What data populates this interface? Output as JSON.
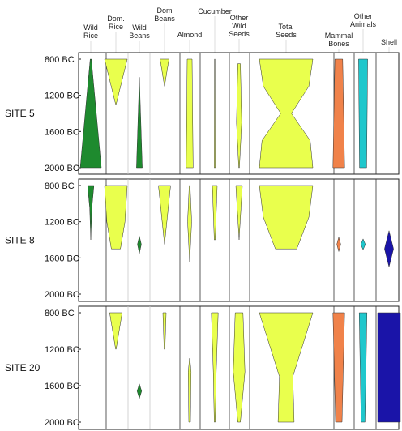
{
  "chart_data": {
    "type": "battleship",
    "ticks": [
      "800 BC",
      "1200 BC",
      "1600 BC",
      "2000 BC"
    ],
    "tick_values": [
      800,
      1200,
      1600,
      2000
    ],
    "ylim": [
      800,
      2000
    ],
    "columns": [
      {
        "name": "Wild Rice",
        "label": [
          "Wild",
          "Rice"
        ],
        "color": "#1e8a2e"
      },
      {
        "name": "Dom. Rice",
        "label": [
          "Dom.",
          "Rice"
        ],
        "color": "#e9ff4d"
      },
      {
        "name": "Wild Beans",
        "label": [
          "Wild",
          "Beans"
        ],
        "color": "#1e8a2e"
      },
      {
        "name": "Dom Beans",
        "label": [
          "Dom",
          "Beans"
        ],
        "color": "#e9ff4d"
      },
      {
        "name": "Almond",
        "label": [
          "Almond"
        ],
        "color": "#e9ff4d"
      },
      {
        "name": "Cucumber",
        "label": [
          "Cucumber"
        ],
        "color": "#e9ff4d"
      },
      {
        "name": "Other Wild Seeds",
        "label": [
          "Other",
          "Wild",
          "Seeds"
        ],
        "color": "#e9ff4d"
      },
      {
        "name": "Total Seeds",
        "label": [
          "Total",
          "Seeds"
        ],
        "color": "#e9ff4d"
      },
      {
        "name": "Mammal Bones",
        "label": [
          "Mammal",
          "Bones"
        ],
        "color": "#f0824a"
      },
      {
        "name": "Other Animals",
        "label": [
          "Other",
          "Animals"
        ],
        "color": "#1fc7cc"
      },
      {
        "name": "Shell",
        "label": [
          "Shell"
        ],
        "color": "#1a14a8"
      }
    ],
    "panels": [
      {
        "site": "SITE 5",
        "ships": [
          {
            "col": 0,
            "profile": [
              [
                800,
                0.05
              ],
              [
                2000,
                1.0
              ]
            ]
          },
          {
            "col": 1,
            "profile": [
              [
                800,
                1.0
              ],
              [
                1300,
                0.02
              ]
            ]
          },
          {
            "col": 2,
            "profile": [
              [
                1000,
                0.0
              ],
              [
                2000,
                0.45
              ]
            ]
          },
          {
            "col": 3,
            "profile": [
              [
                800,
                0.55
              ],
              [
                1100,
                0.0
              ]
            ]
          },
          {
            "col": 4,
            "profile": [
              [
                800,
                0.6
              ],
              [
                2000,
                0.85
              ]
            ]
          },
          {
            "col": 5,
            "profile": [
              [
                800,
                0.05
              ],
              [
                2000,
                0.1
              ]
            ]
          },
          {
            "col": 6,
            "profile": [
              [
                850,
                0.2
              ],
              [
                1500,
                0.4
              ],
              [
                2000,
                0.05
              ]
            ]
          },
          {
            "col": 7,
            "profile": [
              [
                800,
                1.0
              ],
              [
                1100,
                0.85
              ],
              [
                1400,
                0.2
              ],
              [
                1700,
                0.9
              ],
              [
                2000,
                1.0
              ]
            ]
          },
          {
            "col": 8,
            "profile": [
              [
                800,
                0.6
              ],
              [
                2000,
                0.9
              ]
            ]
          },
          {
            "col": 9,
            "profile": [
              [
                800,
                0.7
              ],
              [
                2000,
                0.55
              ]
            ]
          }
        ]
      },
      {
        "site": "SITE 8",
        "ships": [
          {
            "col": 0,
            "profile": [
              [
                800,
                0.3
              ],
              [
                1050,
                0.1
              ],
              [
                1400,
                0.0
              ]
            ]
          },
          {
            "col": 1,
            "profile": [
              [
                800,
                1.0
              ],
              [
                1200,
                0.8
              ],
              [
                1500,
                0.4
              ]
            ]
          },
          {
            "col": 2,
            "profile": [
              [
                1360,
                0.0
              ],
              [
                1450,
                0.3
              ],
              [
                1550,
                0.0
              ]
            ]
          },
          {
            "col": 3,
            "profile": [
              [
                800,
                0.75
              ],
              [
                1450,
                0.0
              ]
            ]
          },
          {
            "col": 4,
            "profile": [
              [
                800,
                0.1
              ],
              [
                1200,
                0.5
              ],
              [
                1650,
                0.0
              ]
            ]
          },
          {
            "col": 5,
            "profile": [
              [
                800,
                0.5
              ],
              [
                1400,
                0.1
              ]
            ]
          },
          {
            "col": 6,
            "profile": [
              [
                800,
                0.5
              ],
              [
                1100,
                0.25
              ],
              [
                1400,
                0.0
              ]
            ]
          },
          {
            "col": 7,
            "profile": [
              [
                800,
                1.0
              ],
              [
                1150,
                0.85
              ],
              [
                1500,
                0.4
              ]
            ]
          },
          {
            "col": 8,
            "profile": [
              [
                1370,
                0.0
              ],
              [
                1450,
                0.3
              ],
              [
                1530,
                0.0
              ]
            ]
          },
          {
            "col": 9,
            "profile": [
              [
                1390,
                0.0
              ],
              [
                1450,
                0.35
              ],
              [
                1510,
                0.0
              ]
            ]
          },
          {
            "col": 10,
            "profile": [
              [
                1300,
                0.0
              ],
              [
                1500,
                0.4
              ],
              [
                1700,
                0.0
              ]
            ]
          }
        ]
      },
      {
        "site": "SITE 20",
        "ships": [
          {
            "col": 1,
            "profile": [
              [
                800,
                0.55
              ],
              [
                1200,
                0.02
              ]
            ]
          },
          {
            "col": 2,
            "profile": [
              [
                1580,
                0.0
              ],
              [
                1660,
                0.35
              ],
              [
                1740,
                0.0
              ]
            ]
          },
          {
            "col": 3,
            "profile": [
              [
                800,
                0.2
              ],
              [
                1200,
                0.05
              ]
            ]
          },
          {
            "col": 4,
            "profile": [
              [
                1300,
                0.05
              ],
              [
                1450,
                0.35
              ],
              [
                2000,
                0.2
              ]
            ]
          },
          {
            "col": 5,
            "profile": [
              [
                800,
                0.7
              ],
              [
                1450,
                0.3
              ],
              [
                2000,
                0.1
              ]
            ]
          },
          {
            "col": 6,
            "profile": [
              [
                800,
                0.6
              ],
              [
                1450,
                0.9
              ],
              [
                2000,
                0.2
              ]
            ]
          },
          {
            "col": 7,
            "profile": [
              [
                800,
                1.0
              ],
              [
                1500,
                0.25
              ],
              [
                2000,
                0.3
              ]
            ]
          },
          {
            "col": 8,
            "profile": [
              [
                800,
                0.9
              ],
              [
                2000,
                0.5
              ]
            ]
          },
          {
            "col": 9,
            "profile": [
              [
                800,
                0.6
              ],
              [
                2000,
                0.3
              ]
            ]
          },
          {
            "col": 10,
            "profile": [
              [
                800,
                1.0
              ],
              [
                2000,
                1.0
              ]
            ]
          }
        ]
      }
    ]
  }
}
